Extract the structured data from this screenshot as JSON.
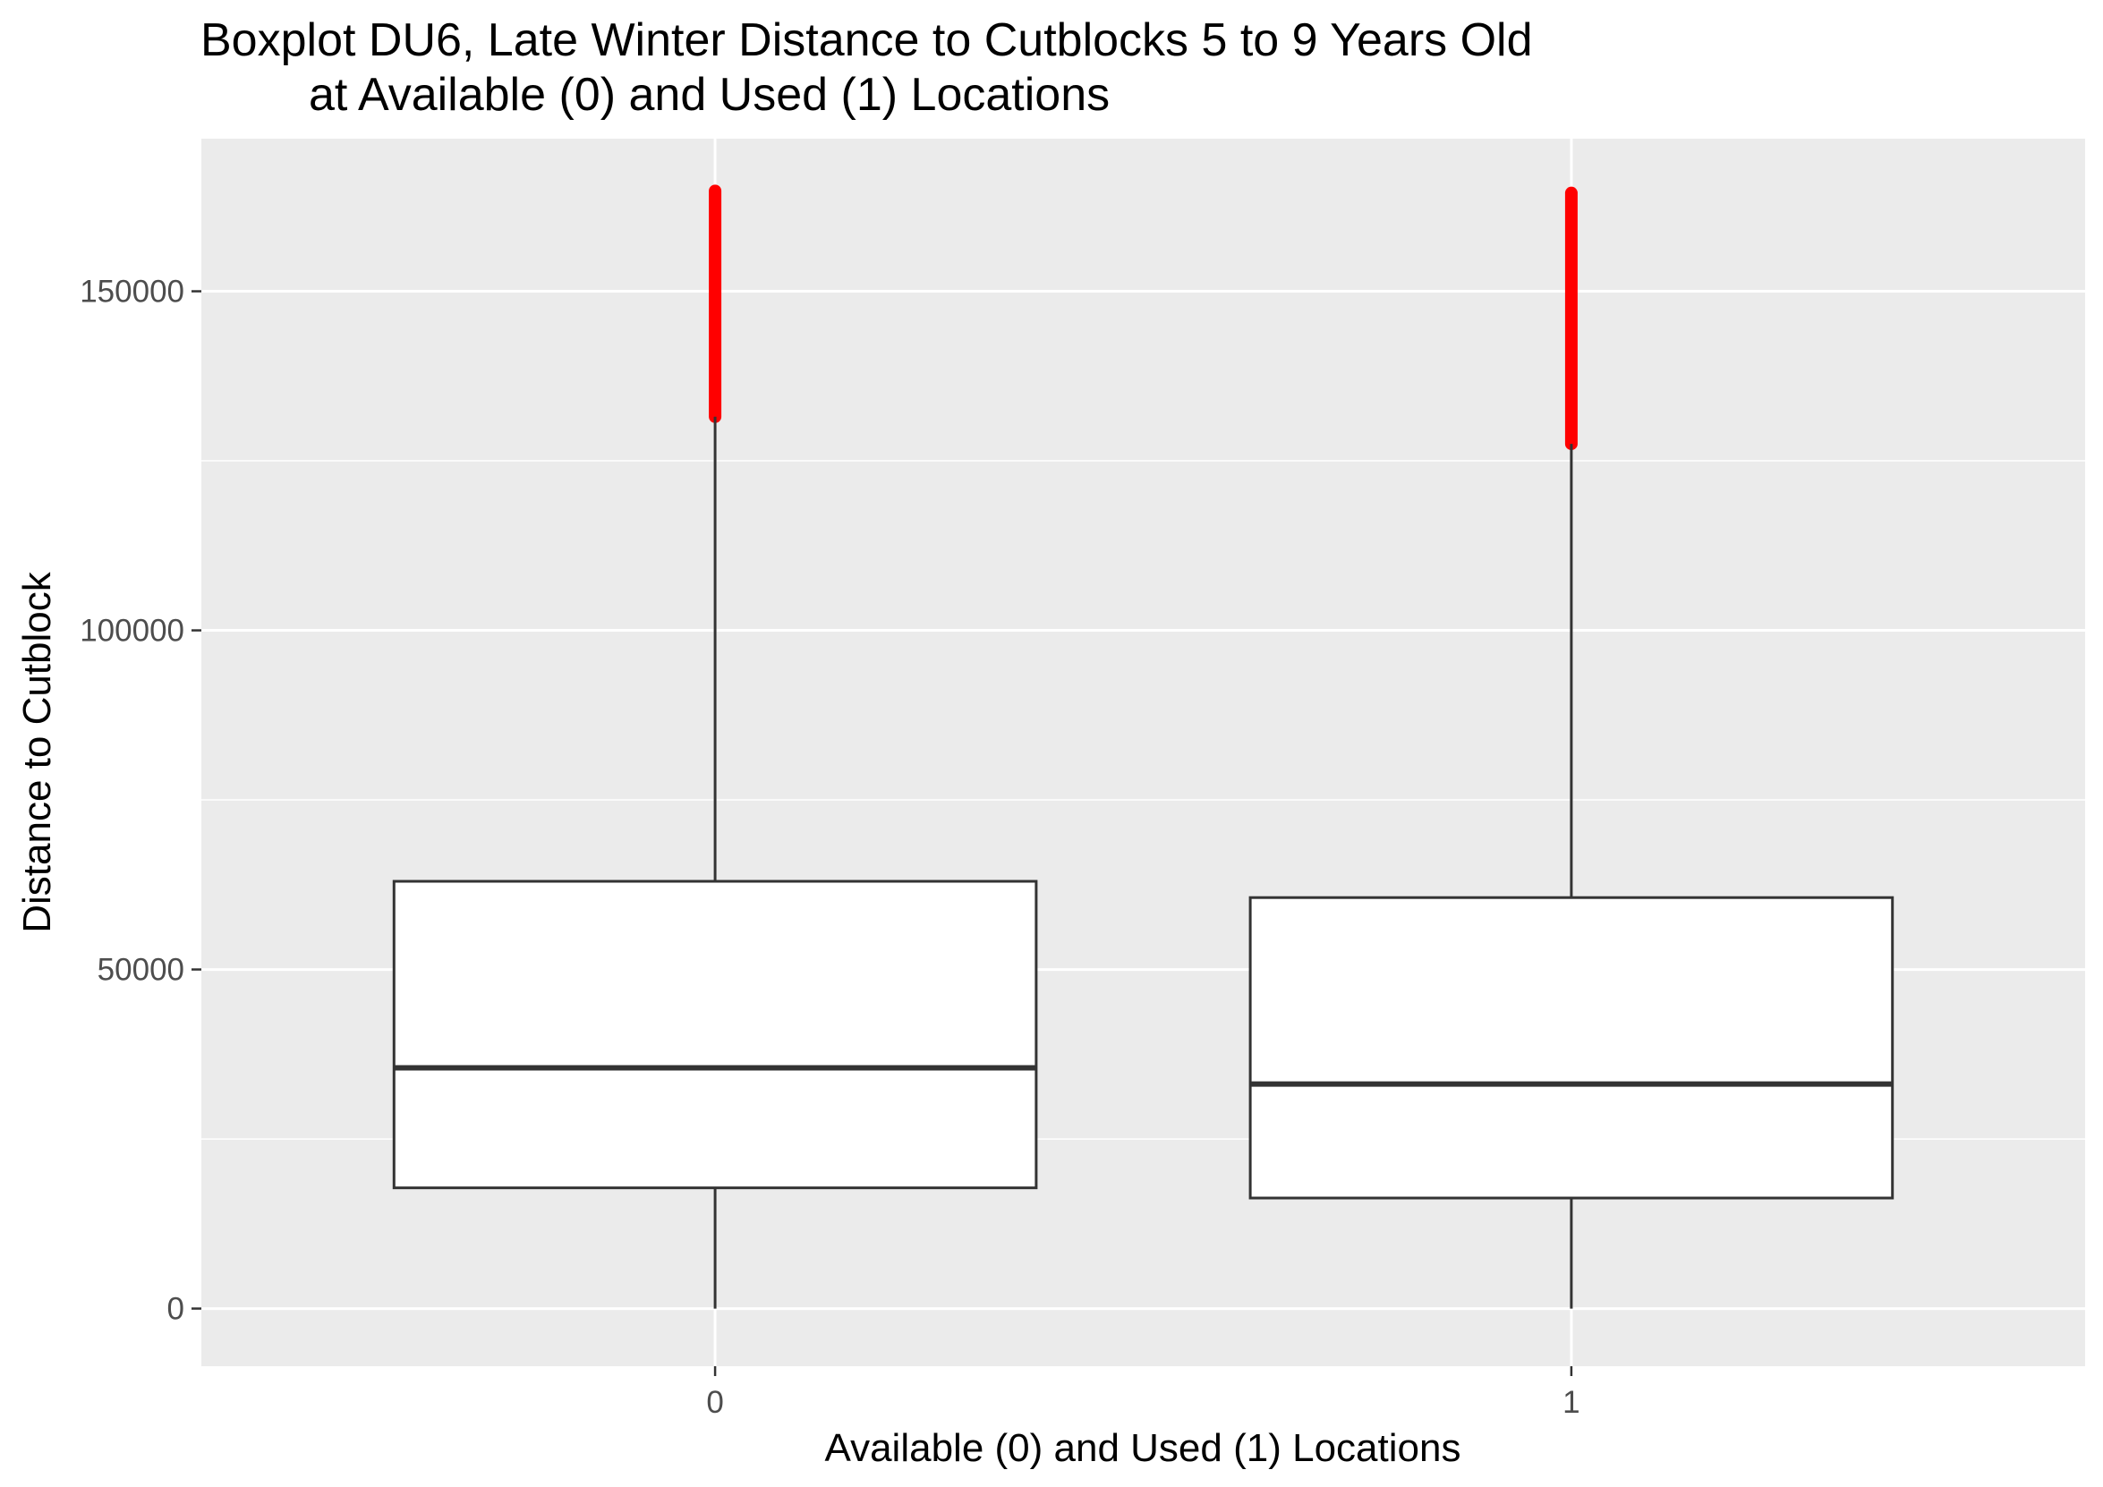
{
  "chart_data": {
    "type": "boxplot",
    "title_lines": [
      "Boxplot DU6, Late Winter Distance to Cutblocks 5 to 9 Years Old",
      "at Available (0) and Used (1) Locations"
    ],
    "xlabel": "Available (0) and Used (1) Locations",
    "ylabel": "Distance to Cutblock",
    "categories": [
      "0",
      "1"
    ],
    "ylim": [
      -8500,
      172500
    ],
    "y_ticks": [
      0,
      50000,
      100000,
      150000
    ],
    "y_tick_labels": [
      "0",
      "50000",
      "100000",
      "150000"
    ],
    "grid": true,
    "legend": "none",
    "boxes": [
      {
        "category": "0",
        "whisker_low": 0,
        "q1": 17800,
        "median": 35500,
        "q3": 63000,
        "whisker_high": 131500,
        "outliers_min": 131500,
        "outliers_max": 164800
      },
      {
        "category": "1",
        "whisker_low": 0,
        "q1": 16300,
        "median": 33100,
        "q3": 60600,
        "whisker_high": 127500,
        "outliers_min": 127500,
        "outliers_max": 164500
      }
    ],
    "colors": {
      "panel_background": "#ebebeb",
      "gridline": "#ffffff",
      "box_fill": "#ffffff",
      "box_stroke": "#333333",
      "outlier": "#ff0000"
    }
  }
}
